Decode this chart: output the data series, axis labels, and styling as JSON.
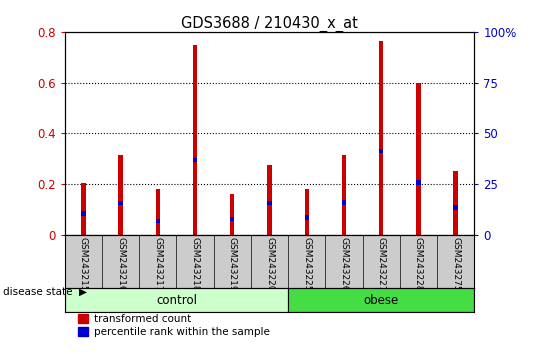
{
  "title": "GDS3688 / 210430_x_at",
  "samples": [
    "GSM243215",
    "GSM243216",
    "GSM243217",
    "GSM243218",
    "GSM243219",
    "GSM243220",
    "GSM243225",
    "GSM243226",
    "GSM243227",
    "GSM243228",
    "GSM243275"
  ],
  "red_values": [
    0.205,
    0.315,
    0.18,
    0.748,
    0.162,
    0.275,
    0.182,
    0.315,
    0.762,
    0.598,
    0.252
  ],
  "blue_marker_heights": [
    0.085,
    0.125,
    0.055,
    0.295,
    0.062,
    0.125,
    0.068,
    0.128,
    0.33,
    0.205,
    0.108
  ],
  "groups": [
    {
      "label": "control",
      "start": 0,
      "end": 6,
      "color": "#ccffcc"
    },
    {
      "label": "obese",
      "start": 6,
      "end": 11,
      "color": "#44dd44"
    }
  ],
  "ylim_left": [
    0,
    0.8
  ],
  "ylim_right": [
    0,
    100
  ],
  "yticks_left": [
    0,
    0.2,
    0.4,
    0.6,
    0.8
  ],
  "yticks_right": [
    0,
    25,
    50,
    75,
    100
  ],
  "ytick_labels_right": [
    "0",
    "25",
    "50",
    "75",
    "100%"
  ],
  "left_tick_color": "#cc0000",
  "right_tick_color": "#0000cc",
  "bar_width": 0.12,
  "blue_marker_size": 0.018,
  "red_color": "#cc0000",
  "blue_color": "#0000cc",
  "bg_color": "#ffffff",
  "grid_color": "#000000",
  "label_area_color": "#cccccc",
  "legend_red_label": "transformed count",
  "legend_blue_label": "percentile rank within the sample"
}
